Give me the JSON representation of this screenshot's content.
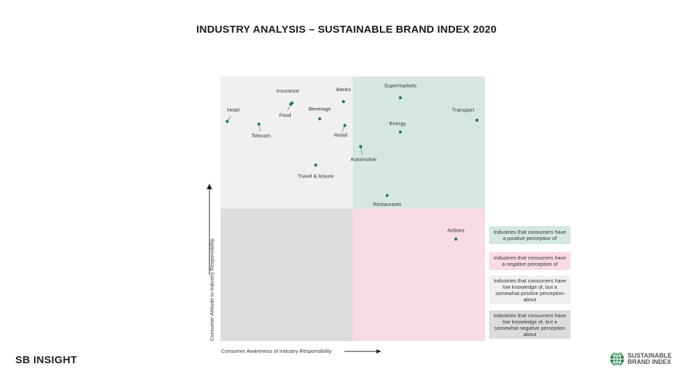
{
  "title": "INDUSTRY ANALYSIS – SUSTAINABLE BRAND INDEX 2020",
  "chart_data": {
    "type": "scatter",
    "xlabel": "Consumer Awareness of Industry Responsibility",
    "ylabel": "Consumer Attitude to Industry Responsibility",
    "xlim": [
      0,
      10
    ],
    "ylim": [
      0,
      10
    ],
    "grid": false,
    "points": [
      {
        "label": "Hotel",
        "x": 0.25,
        "y": 8.3
      },
      {
        "label": "Insurance",
        "x": 2.7,
        "y": 9.0
      },
      {
        "label": "Banks",
        "x": 4.65,
        "y": 9.05
      },
      {
        "label": "Supermarkets",
        "x": 6.8,
        "y": 9.2
      },
      {
        "label": "Food",
        "x": 2.65,
        "y": 8.95
      },
      {
        "label": "Beverage",
        "x": 3.75,
        "y": 8.4
      },
      {
        "label": "Transport",
        "x": 9.7,
        "y": 8.35
      },
      {
        "label": "Telecom",
        "x": 1.45,
        "y": 8.2
      },
      {
        "label": "Retail",
        "x": 4.7,
        "y": 8.15
      },
      {
        "label": "Energy",
        "x": 6.8,
        "y": 7.9
      },
      {
        "label": "Automotive",
        "x": 5.3,
        "y": 7.35
      },
      {
        "label": "Travel & leisure",
        "x": 3.6,
        "y": 6.65
      },
      {
        "label": "Restaurants",
        "x": 6.3,
        "y": 5.5
      },
      {
        "label": "Airlines",
        "x": 8.9,
        "y": 3.85
      }
    ],
    "quadrants": [
      {
        "name": "Industries that consumers have a positive perception of",
        "color": "#d5e8e0"
      },
      {
        "name": "Industries that consumers have a negative perception of",
        "color": "#f9dbe3"
      },
      {
        "name": "Industries that consumers have low knowledge of, but a somewhat positive perception about",
        "color": "#f0f0f0"
      },
      {
        "name": "Industries that consumers have low knowledge of, but a somewhat negative perception about",
        "color": "#dcdcdc"
      }
    ],
    "marker_color": "#1e7a55"
  },
  "brand_left": "SB INSIGHT",
  "brand_right_line1": "SUSTAINABLE",
  "brand_right_line2": "BRAND INDEX"
}
